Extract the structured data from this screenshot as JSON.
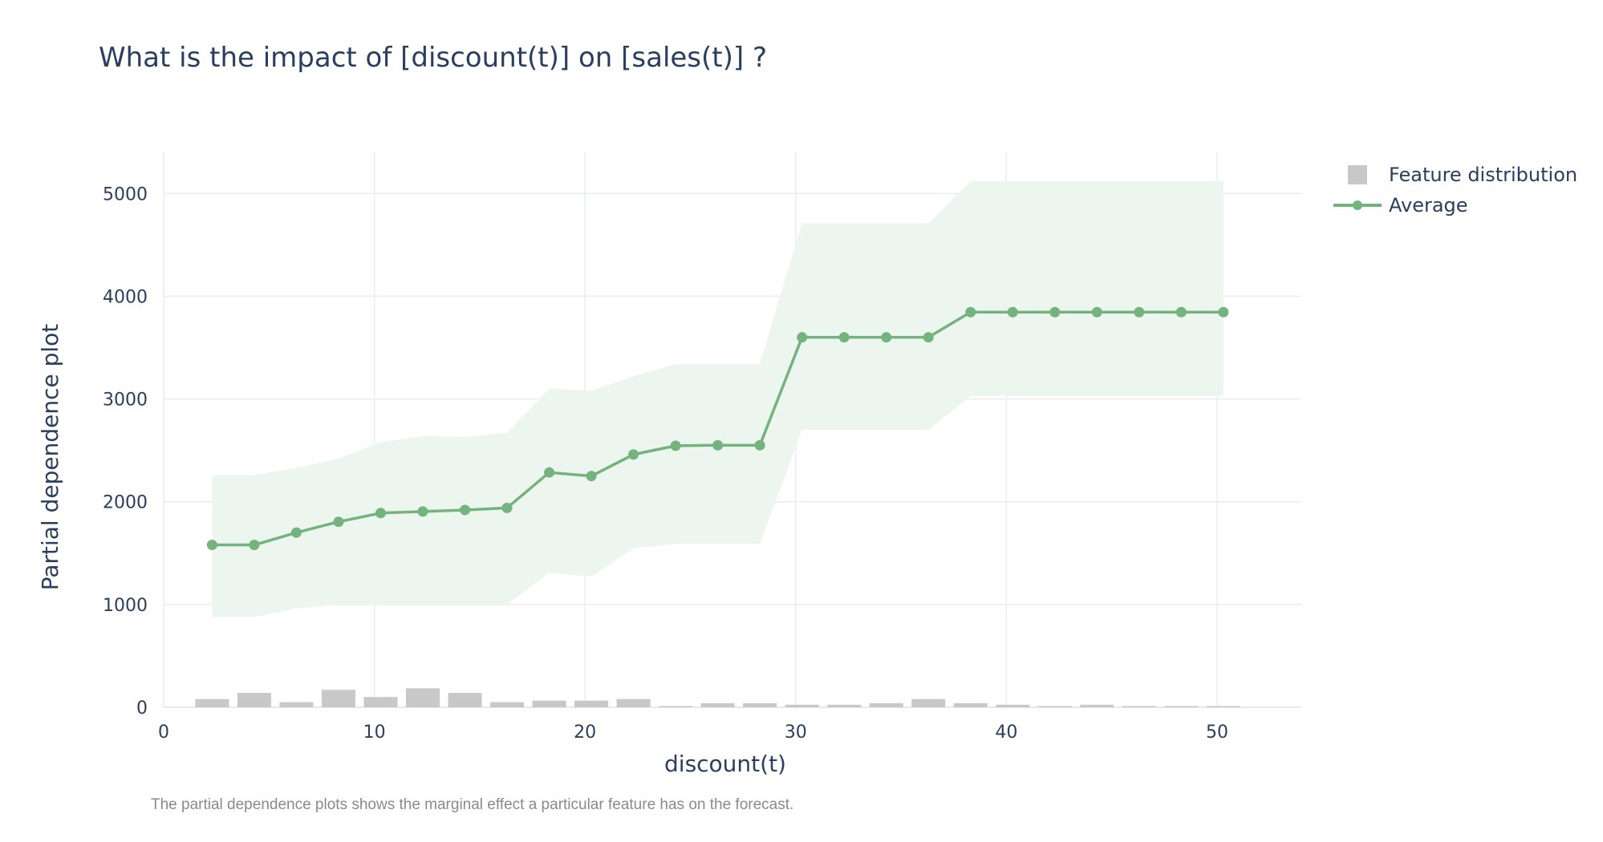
{
  "title": "What is the impact of [discount(t)] on [sales(t)] ?",
  "caption": "The partial dependence plots shows the marginal effect a particular feature has on the forecast.",
  "colors": {
    "average_line": "#74b27e",
    "band_fill": "#ecf6ee",
    "distribution_bar": "#c8c8c8",
    "grid": "#e9ecf1",
    "text": "#2a3f5f"
  },
  "chart_data": {
    "type": "line",
    "title": "What is the impact of [discount(t)] on [sales(t)] ?",
    "xlabel": "discount(t)",
    "ylabel": "Partial dependence plot",
    "xlim": [
      0,
      54
    ],
    "ylim": [
      0,
      5400
    ],
    "x_ticks": [
      0,
      10,
      20,
      30,
      40,
      50
    ],
    "y_ticks": [
      0,
      1000,
      2000,
      3000,
      4000,
      5000
    ],
    "grid": true,
    "legend_position": "top-right",
    "x": [
      2.3,
      4.3,
      6.3,
      8.3,
      10.3,
      12.3,
      14.3,
      16.3,
      18.3,
      20.3,
      22.3,
      24.3,
      26.3,
      28.3,
      30.3,
      32.3,
      34.3,
      36.3,
      38.3,
      40.3,
      42.3,
      44.3,
      46.3,
      48.3,
      50.3
    ],
    "series": [
      {
        "name": "Average",
        "values": [
          1580,
          1580,
          1700,
          1805,
          1890,
          1905,
          1920,
          1940,
          2285,
          2250,
          2460,
          2545,
          2550,
          2550,
          3600,
          3600,
          3600,
          3600,
          3845,
          3845,
          3845,
          3845,
          3845,
          3845,
          3845
        ]
      }
    ],
    "band": {
      "upper": [
        2260,
        2260,
        2330,
        2420,
        2580,
        2640,
        2630,
        2670,
        3100,
        3080,
        3220,
        3340,
        3340,
        3340,
        4710,
        4710,
        4710,
        4710,
        5120,
        5120,
        5120,
        5120,
        5120,
        5120,
        5120
      ],
      "lower": [
        880,
        880,
        960,
        1000,
        1000,
        1000,
        1000,
        1000,
        1310,
        1270,
        1550,
        1590,
        1590,
        1590,
        2700,
        2700,
        2700,
        2700,
        3030,
        3030,
        3030,
        3030,
        3030,
        3030,
        3030
      ]
    },
    "distribution": {
      "name": "Feature distribution",
      "x": [
        2.3,
        4.3,
        6.3,
        8.3,
        10.3,
        12.3,
        14.3,
        16.3,
        18.3,
        20.3,
        22.3,
        24.3,
        26.3,
        28.3,
        30.3,
        32.3,
        34.3,
        36.3,
        38.3,
        40.3,
        42.3,
        44.3,
        46.3,
        48.3,
        50.3
      ],
      "values": [
        80,
        140,
        50,
        170,
        100,
        185,
        140,
        50,
        65,
        65,
        80,
        8,
        40,
        40,
        25,
        25,
        40,
        80,
        40,
        25,
        8,
        25,
        8,
        8,
        8
      ]
    }
  }
}
